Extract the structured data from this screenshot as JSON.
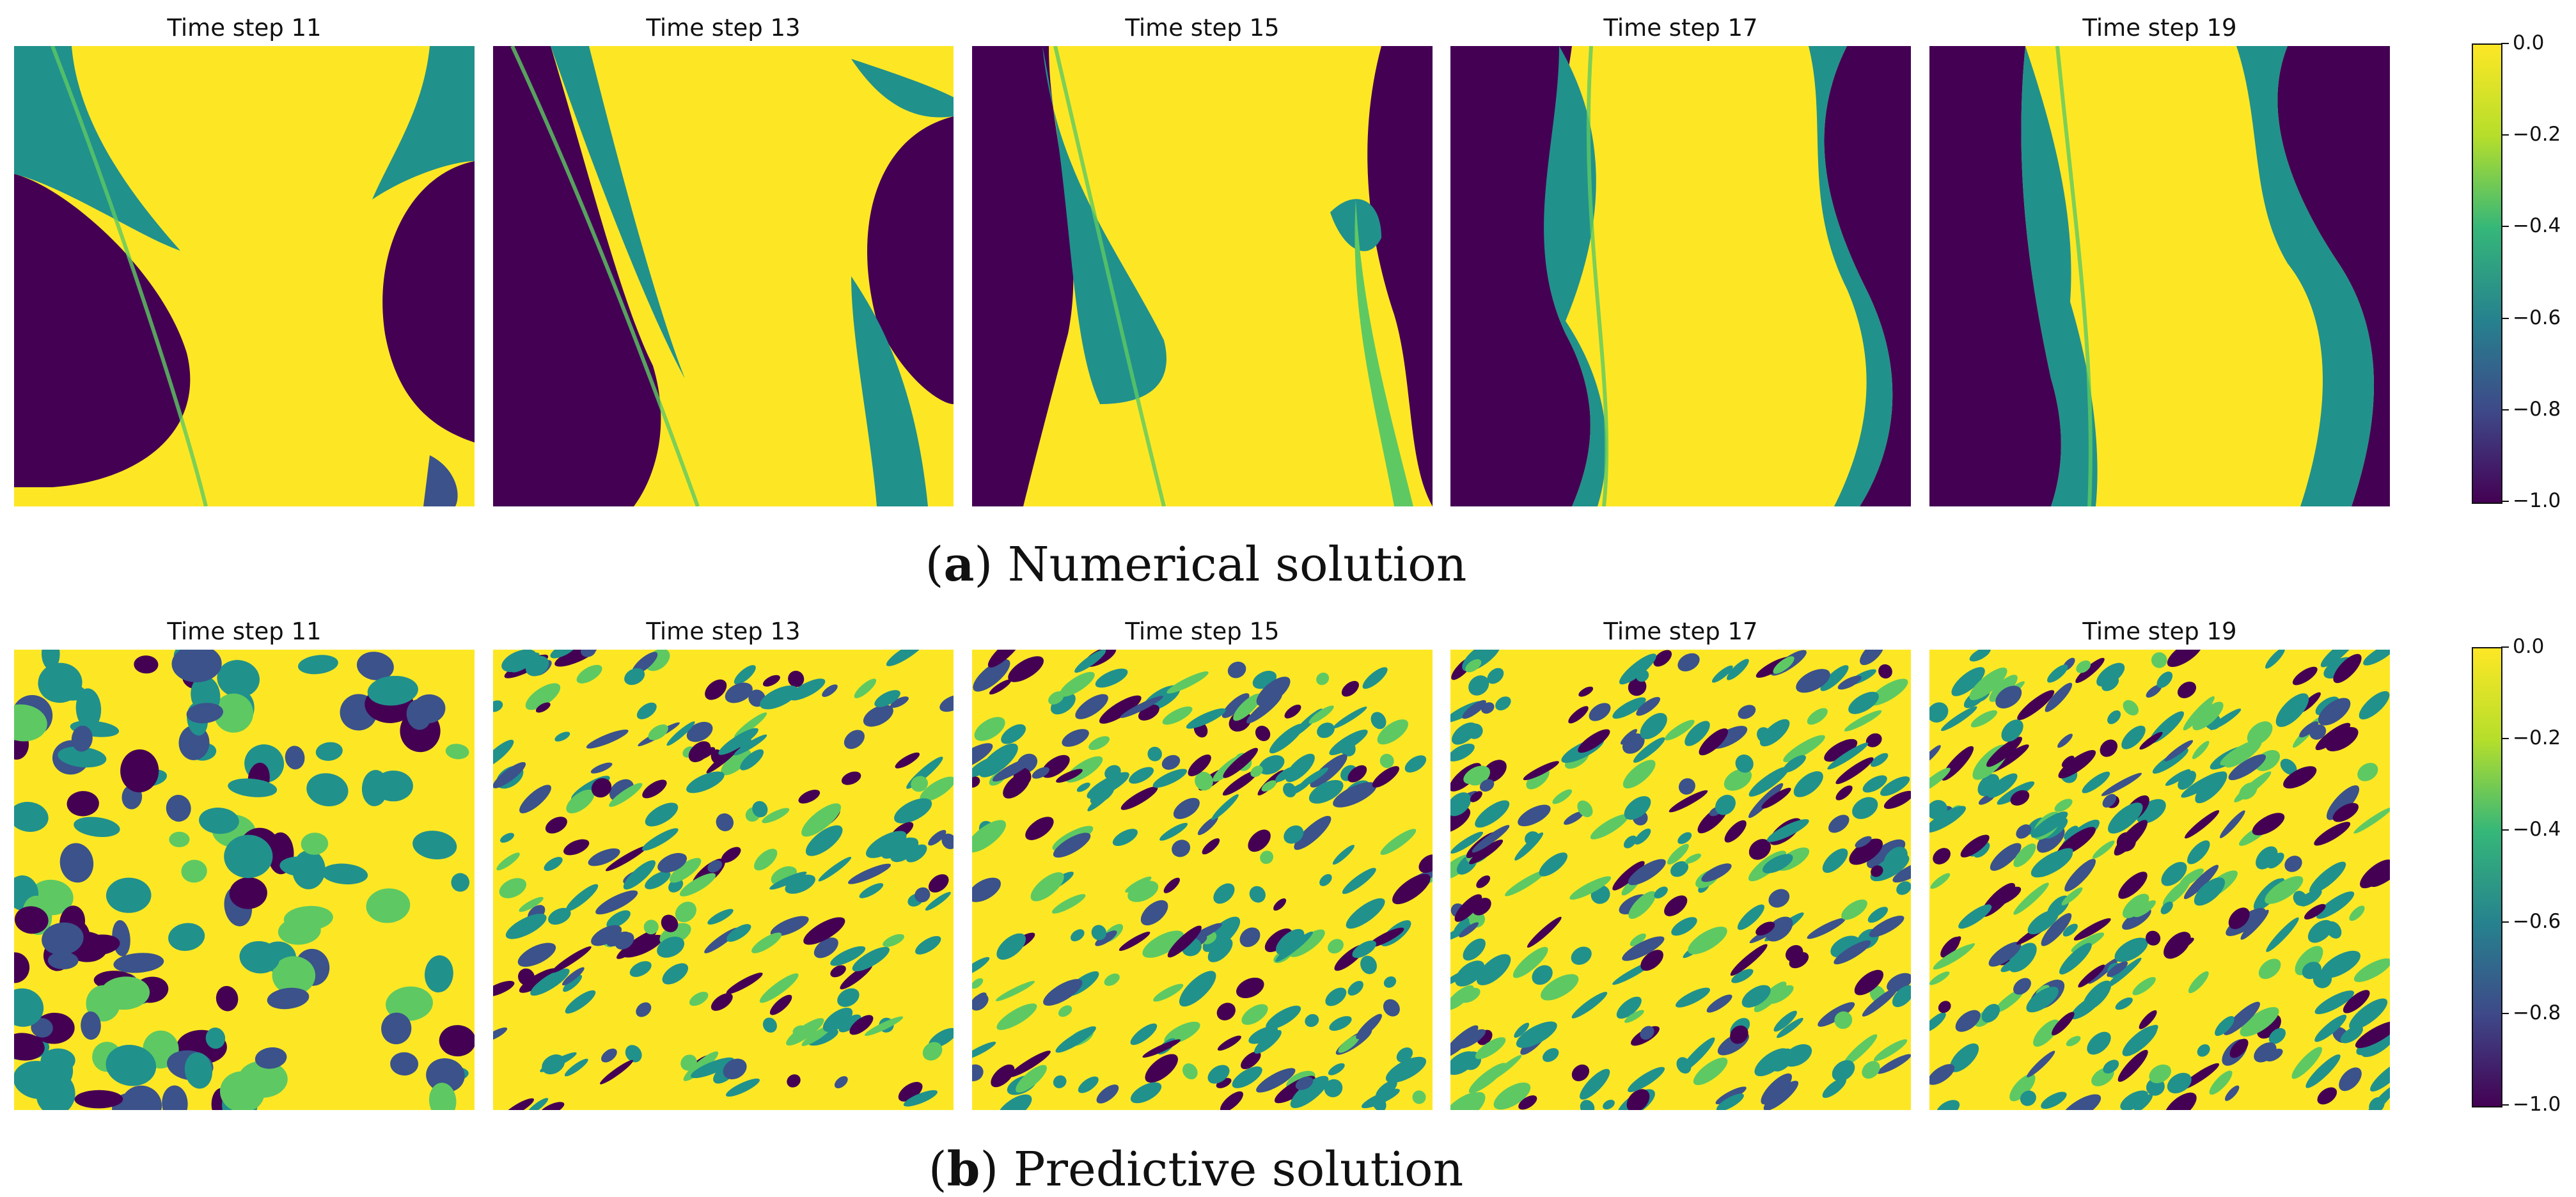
{
  "figure": {
    "rows": [
      {
        "id": "numerical",
        "caption_letter": "a",
        "caption_text": "Numerical solution",
        "panels": [
          {
            "title": "Time step 11"
          },
          {
            "title": "Time step 13"
          },
          {
            "title": "Time step 15"
          },
          {
            "title": "Time step 17"
          },
          {
            "title": "Time step 19"
          }
        ],
        "colorbar_ticks": [
          "0.0",
          "−0.2",
          "−0.4",
          "−0.6",
          "−0.8",
          "−1.0"
        ]
      },
      {
        "id": "predictive",
        "caption_letter": "b",
        "caption_text": "Predictive solution",
        "panels": [
          {
            "title": "Time step 11"
          },
          {
            "title": "Time step 13"
          },
          {
            "title": "Time step 15"
          },
          {
            "title": "Time step 17"
          },
          {
            "title": "Time step 19"
          }
        ],
        "colorbar_ticks": [
          "0.0",
          "−0.2",
          "−0.4",
          "−0.6",
          "−0.8",
          "−1.0"
        ]
      }
    ]
  },
  "chart_data": {
    "type": "heatmap",
    "colormap": "viridis",
    "colorbar_range": [
      -1.0,
      0.0
    ],
    "colorbar_ticks": [
      0.0,
      -0.2,
      -0.4,
      -0.6,
      -0.8,
      -1.0
    ],
    "colors": {
      "low": "#440154",
      "mid_low": "#3b528b",
      "mid": "#21918c",
      "mid_high": "#5ec962",
      "high": "#fde725"
    }
  }
}
